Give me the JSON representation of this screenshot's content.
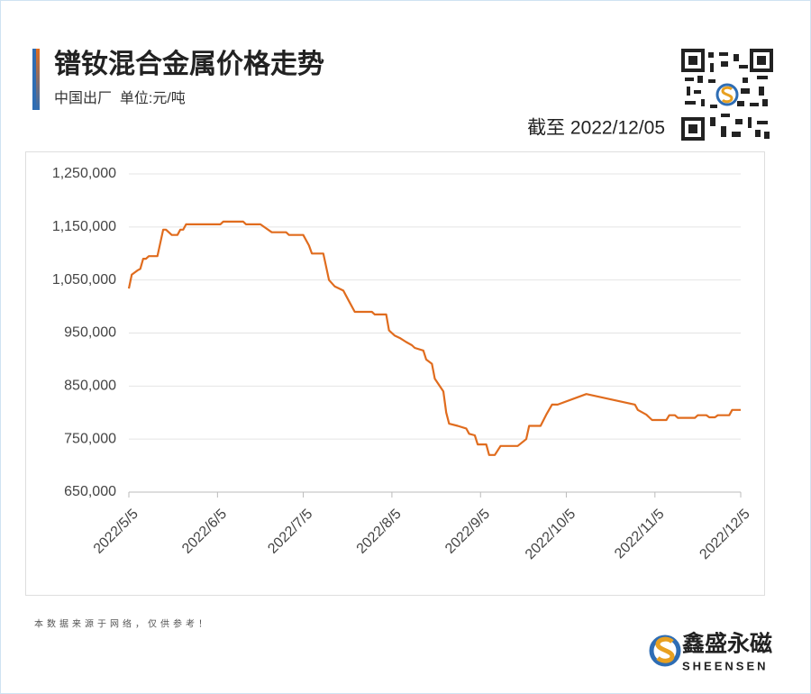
{
  "chart_data": {
    "type": "line",
    "title": "镨钕混合金属价格走势",
    "subtitle": "中国出厂  单位:元/吨",
    "date_note": "截至 2022/12/05",
    "footnote": "本数据来源于网络，仅供参考！",
    "brand": "鑫盛永磁",
    "brand_en": "SHEENSEN",
    "color": "#e06c1e",
    "grid": true,
    "xlim": [
      "2022-05-05",
      "2022-12-05"
    ],
    "xticks": [
      {
        "value": "2022-05-05",
        "label": "2022/5/5"
      },
      {
        "value": "2022-06-05",
        "label": "2022/6/5"
      },
      {
        "value": "2022-07-05",
        "label": "2022/7/5"
      },
      {
        "value": "2022-08-05",
        "label": "2022/8/5"
      },
      {
        "value": "2022-09-05",
        "label": "2022/9/5"
      },
      {
        "value": "2022-10-05",
        "label": "2022/10/5"
      },
      {
        "value": "2022-11-05",
        "label": "2022/11/5"
      },
      {
        "value": "2022-12-05",
        "label": "2022/12/5"
      }
    ],
    "ylim": [
      650000,
      1250000
    ],
    "yticks": [
      {
        "value": 650000,
        "label": "650,000"
      },
      {
        "value": 750000,
        "label": "750,000"
      },
      {
        "value": 850000,
        "label": "850,000"
      },
      {
        "value": 950000,
        "label": "950,000"
      },
      {
        "value": 1050000,
        "label": "1,050,000"
      },
      {
        "value": 1150000,
        "label": "1,150,000"
      },
      {
        "value": 1250000,
        "label": "1,250,000"
      }
    ],
    "x": [
      "2022-05-05",
      "2022-05-06",
      "2022-05-08",
      "2022-05-09",
      "2022-05-10",
      "2022-05-11",
      "2022-05-12",
      "2022-05-15",
      "2022-05-17",
      "2022-05-18",
      "2022-05-20",
      "2022-05-22",
      "2022-05-23",
      "2022-05-24",
      "2022-05-25",
      "2022-06-06",
      "2022-06-07",
      "2022-06-14",
      "2022-06-15",
      "2022-06-20",
      "2022-06-24",
      "2022-06-29",
      "2022-06-30",
      "2022-07-05",
      "2022-07-07",
      "2022-07-08",
      "2022-07-12",
      "2022-07-14",
      "2022-07-16",
      "2022-07-19",
      "2022-07-21",
      "2022-07-23",
      "2022-07-29",
      "2022-07-30",
      "2022-08-03",
      "2022-08-04",
      "2022-08-06",
      "2022-08-08",
      "2022-08-10",
      "2022-08-12",
      "2022-08-13",
      "2022-08-16",
      "2022-08-17",
      "2022-08-19",
      "2022-08-20",
      "2022-08-23",
      "2022-08-24",
      "2022-08-25",
      "2022-08-28",
      "2022-08-31",
      "2022-09-01",
      "2022-09-03",
      "2022-09-04",
      "2022-09-07",
      "2022-09-08",
      "2022-09-10",
      "2022-09-12",
      "2022-09-18",
      "2022-09-21",
      "2022-09-22",
      "2022-09-26",
      "2022-09-28",
      "2022-09-30",
      "2022-10-02",
      "2022-10-12",
      "2022-10-29",
      "2022-10-30",
      "2022-11-02",
      "2022-11-04",
      "2022-11-09",
      "2022-11-10",
      "2022-11-12",
      "2022-11-13",
      "2022-11-19",
      "2022-11-20",
      "2022-11-23",
      "2022-11-24",
      "2022-11-26",
      "2022-11-27",
      "2022-12-01",
      "2022-12-02",
      "2022-12-05"
    ],
    "values": [
      1034000,
      1060000,
      1068000,
      1071000,
      1090000,
      1090000,
      1095000,
      1095000,
      1145000,
      1145000,
      1135000,
      1135000,
      1145000,
      1145000,
      1155000,
      1155000,
      1160000,
      1160000,
      1155000,
      1155000,
      1140000,
      1140000,
      1135000,
      1135000,
      1115000,
      1100000,
      1100000,
      1050000,
      1038000,
      1030000,
      1010000,
      990000,
      990000,
      985000,
      985000,
      955000,
      945000,
      940000,
      933000,
      927000,
      922000,
      917000,
      900000,
      892000,
      864000,
      840000,
      800000,
      779000,
      775000,
      770000,
      760000,
      757000,
      740000,
      740000,
      720000,
      720000,
      737000,
      737000,
      750000,
      775000,
      775000,
      796000,
      815000,
      815000,
      835000,
      815000,
      805000,
      796000,
      786000,
      786000,
      795000,
      795000,
      790000,
      790000,
      795000,
      795000,
      791000,
      791000,
      795000,
      795000,
      805000,
      805000
    ]
  }
}
